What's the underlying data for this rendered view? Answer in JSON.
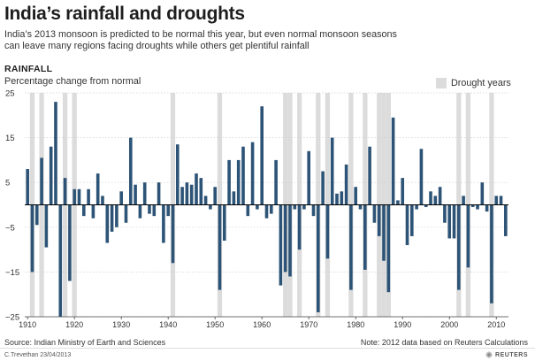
{
  "header": {
    "title": "India’s rainfall and droughts",
    "subtitle": "India’s 2013 monsoon is predicted to be normal this year, but even normal monsoon seasons can leave many regions facing  droughts while others get plentiful rainfall",
    "section": "RAINFALL",
    "ylabel": "Percentage change from normal",
    "legend": "Drought years"
  },
  "footer": {
    "source": "Source:  Indian Ministry of Earth and Sciences",
    "note": "Note: 2012 data based on Reuters Calculations",
    "credit": "C.Trevethan   23/04/2013",
    "logo": "REUTERS"
  },
  "colors": {
    "bar": "#2d5476",
    "drought": "#dcdcdc",
    "axis": "#000000",
    "grid": "#d0d0d0"
  },
  "chart_data": {
    "type": "bar",
    "xlim": [
      1910,
      2012
    ],
    "ylim": [
      -25,
      25
    ],
    "yticks": [
      -25,
      -15,
      -5,
      5,
      15,
      25
    ],
    "ytick_labels": [
      "−25",
      "−15",
      "−5",
      "5",
      "15",
      "25"
    ],
    "xticks": [
      1910,
      1920,
      1930,
      1940,
      1950,
      1960,
      1970,
      1980,
      1990,
      2000,
      2010
    ],
    "drought_years": [
      1911,
      1913,
      1918,
      1920,
      1941,
      1951,
      1965,
      1966,
      1968,
      1972,
      1974,
      1979,
      1982,
      1985,
      1986,
      1987,
      2002,
      2004,
      2009
    ],
    "years": [
      1910,
      1911,
      1912,
      1913,
      1914,
      1915,
      1916,
      1917,
      1918,
      1919,
      1920,
      1921,
      1922,
      1923,
      1924,
      1925,
      1926,
      1927,
      1928,
      1929,
      1930,
      1931,
      1932,
      1933,
      1934,
      1935,
      1936,
      1937,
      1938,
      1939,
      1940,
      1941,
      1942,
      1943,
      1944,
      1945,
      1946,
      1947,
      1948,
      1949,
      1950,
      1951,
      1952,
      1953,
      1954,
      1955,
      1956,
      1957,
      1958,
      1959,
      1960,
      1961,
      1962,
      1963,
      1964,
      1965,
      1966,
      1967,
      1968,
      1969,
      1970,
      1971,
      1972,
      1973,
      1974,
      1975,
      1976,
      1977,
      1978,
      1979,
      1980,
      1981,
      1982,
      1983,
      1984,
      1985,
      1986,
      1987,
      1988,
      1989,
      1990,
      1991,
      1992,
      1993,
      1994,
      1995,
      1996,
      1997,
      1998,
      1999,
      2000,
      2001,
      2002,
      2003,
      2004,
      2005,
      2006,
      2007,
      2008,
      2009,
      2010,
      2011,
      2012
    ],
    "values": [
      8,
      -15,
      -4.5,
      10.5,
      -9.5,
      13,
      23,
      -25,
      6,
      -17,
      3.5,
      3.5,
      -2.5,
      3.5,
      -3,
      7,
      2,
      -8.5,
      -6,
      -5,
      3,
      -4,
      15,
      4.5,
      -3,
      5,
      -2,
      -2.5,
      5,
      -8.5,
      -2.5,
      -13,
      13.5,
      4,
      5,
      4.5,
      7,
      6,
      2,
      -1,
      4,
      -19,
      -8,
      10,
      3,
      10,
      13,
      -2.5,
      14,
      -1,
      22,
      -3,
      -2,
      10,
      -18,
      -15,
      -16,
      -1,
      -10,
      -1,
      12,
      -2.5,
      -24,
      7.5,
      -12,
      15,
      2.5,
      3,
      9,
      -19,
      4,
      -1,
      -14.5,
      13,
      -4,
      -7,
      -12.5,
      -19.5,
      19.5,
      1,
      6,
      -9,
      -7,
      -1,
      12.5,
      -0.5,
      3,
      2,
      4,
      -4,
      -7.5,
      -7.5,
      -19,
      2,
      -14,
      -0.5,
      -1,
      5,
      -1.5,
      -22,
      2,
      2,
      -7
    ]
  }
}
